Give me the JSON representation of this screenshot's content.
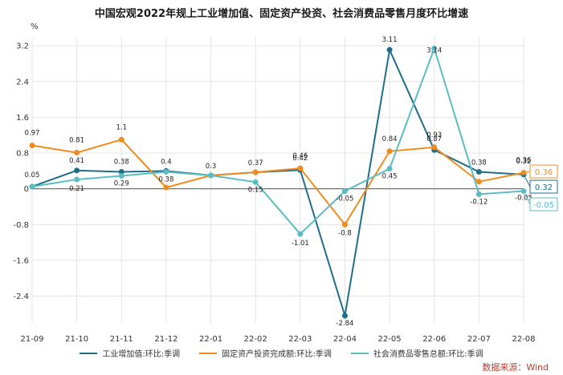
{
  "chart_data": {
    "type": "line",
    "title": "中国宏观2022年规上工业增加值、固定资产投资、社会消费品零售月度环比增速",
    "ylabel": "%",
    "ylim": [
      -3.0,
      3.4
    ],
    "yticks": [
      "3.2",
      "2.4",
      "1.6",
      "0.8",
      "0",
      "-0.8",
      "-1.6",
      "-2.4"
    ],
    "ytick_values": [
      3.2,
      2.4,
      1.6,
      0.8,
      0,
      -0.8,
      -1.6,
      -2.4
    ],
    "categories": [
      "21-09",
      "21-10",
      "21-11",
      "21-12",
      "22-01",
      "22-02",
      "22-03",
      "22-04",
      "22-05",
      "22-06",
      "22-07",
      "22-08"
    ],
    "grid": true,
    "legend_position": "bottom",
    "series": [
      {
        "name": "工业增加值:环比:季调",
        "color": "#1f6e8c",
        "values": [
          0.05,
          0.41,
          0.38,
          0.4,
          0.3,
          0.37,
          0.42,
          -2.84,
          3.11,
          0.87,
          0.38,
          0.32
        ],
        "labels": [
          "0.05",
          "0.41",
          "0.38",
          "0.4",
          "0.3",
          "0.37",
          "0.42",
          "-2.84",
          "3.11",
          "0.87",
          "0.38",
          "0.32"
        ],
        "last_badge": "0.32"
      },
      {
        "name": "固定资产投资完成额:环比:季调",
        "color": "#f08c1e",
        "values": [
          0.97,
          0.81,
          1.1,
          0.03,
          0.3,
          0.37,
          0.46,
          -0.8,
          0.84,
          0.93,
          0.16,
          0.36
        ],
        "labels": [
          "0.97",
          "0.81",
          "1.1",
          "",
          "",
          "",
          "0.46",
          "-0.8",
          "0.84",
          "0.93",
          "",
          "0.36"
        ],
        "last_badge": "0.36"
      },
      {
        "name": "社会消费品零售总额:环比:季调",
        "color": "#5bbcc4",
        "values": [
          0.05,
          0.21,
          0.29,
          0.38,
          0.3,
          0.15,
          -1.01,
          -0.05,
          0.45,
          3.14,
          -0.12,
          -0.05
        ],
        "labels": [
          "",
          "0.21",
          "0.29",
          "0.38",
          "",
          "0.15",
          "-1.01",
          "-0.05",
          "0.45",
          "3.14",
          "-0.12",
          "-0.05"
        ],
        "last_badge": "-0.05"
      }
    ],
    "source": "数据来源：Wind"
  }
}
